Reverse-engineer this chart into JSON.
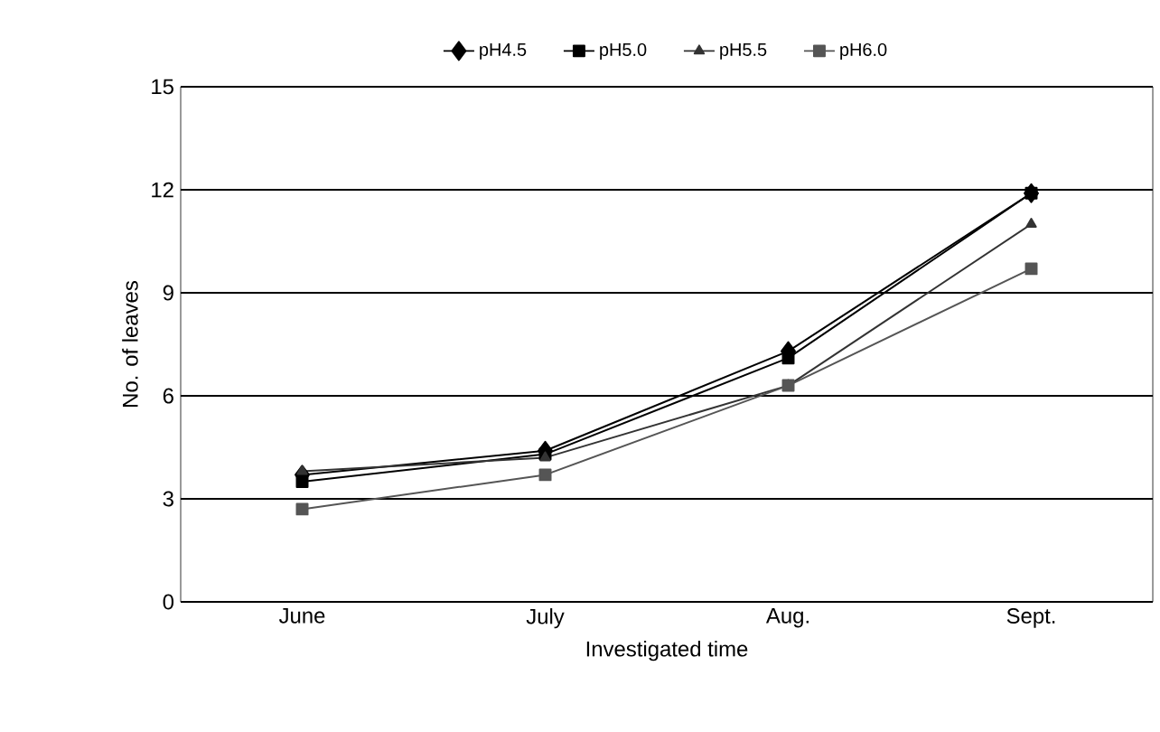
{
  "chart_data": {
    "type": "line",
    "xlabel": "Investigated time",
    "ylabel": "No. of leaves",
    "categories": [
      "June",
      "July",
      "Aug.",
      "Sept."
    ],
    "series": [
      {
        "name": "pH4.5",
        "color": "#000000",
        "marker": "diamond",
        "values": [
          3.7,
          4.4,
          7.3,
          11.9
        ]
      },
      {
        "name": "pH5.0",
        "color": "#000000",
        "marker": "square",
        "values": [
          3.5,
          4.3,
          7.1,
          11.9
        ]
      },
      {
        "name": "pH5.5",
        "color": "#333333",
        "marker": "triangle",
        "values": [
          3.8,
          4.2,
          6.3,
          11.0
        ]
      },
      {
        "name": "pH6.0",
        "color": "#555555",
        "marker": "square",
        "values": [
          2.7,
          3.7,
          6.3,
          9.7
        ]
      }
    ],
    "ylim": [
      0,
      15
    ],
    "yticks": [
      0,
      3,
      6,
      9,
      12,
      15
    ],
    "grid": "y",
    "legend": "top"
  }
}
